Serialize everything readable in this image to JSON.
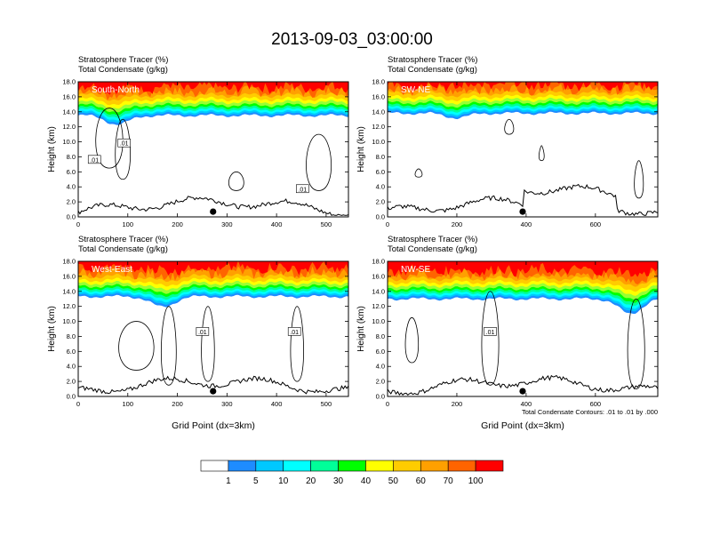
{
  "title": "2013-09-03_03:00:00",
  "chart_data": {
    "type": "heatmap",
    "variables": [
      "Stratosphere Tracer   (%)",
      "Total Condensate   (g/kg)"
    ],
    "ylabel": "Height (km)",
    "ylim": [
      0,
      18
    ],
    "yticks": [
      "0.0",
      "2.0",
      "4.0",
      "6.0",
      "8.0",
      "10.0",
      "12.0",
      "14.0",
      "16.0",
      "18.0"
    ],
    "xlabel": "Grid Point (dx=3km)",
    "contour_note": "Total Condensate Contours: .01 to .01 by .000",
    "contour_label": ".01",
    "colorbar": {
      "levels": [
        "1",
        "5",
        "10",
        "20",
        "30",
        "40",
        "50",
        "60",
        "70",
        "100"
      ],
      "colors": [
        "#ffffff",
        "#1e8cff",
        "#00c8ff",
        "#00ffff",
        "#00ff99",
        "#00ff00",
        "#99ff33",
        "#ffff00",
        "#ffcc00",
        "#ffa000",
        "#ff6400",
        "#ff0000"
      ]
    },
    "panels": [
      {
        "name": "South-North",
        "xlim": [
          0,
          545
        ],
        "xticks": [
          "0",
          "100",
          "200",
          "300",
          "400",
          "500"
        ],
        "marker_x": 272,
        "tropopause_km": 13.5,
        "dip_x": 80,
        "dip_depth": 1.2
      },
      {
        "name": "SW-NE",
        "xlim": [
          0,
          780
        ],
        "xticks": [
          "0",
          "200",
          "400",
          "600"
        ],
        "marker_x": 390,
        "tropopause_km": 13.8,
        "dip_x": 200,
        "dip_depth": 0.6
      },
      {
        "name": "West-East",
        "xlim": [
          0,
          545
        ],
        "xticks": [
          "0",
          "100",
          "200",
          "300",
          "400",
          "500"
        ],
        "marker_x": 272,
        "tropopause_km": 13.3,
        "dip_x": 170,
        "dip_depth": 1.4
      },
      {
        "name": "NW-SE",
        "xlim": [
          0,
          780
        ],
        "xticks": [
          "0",
          "200",
          "400",
          "600"
        ],
        "marker_x": 390,
        "tropopause_km": 13.0,
        "dip_x": 700,
        "dip_depth": 2.0
      }
    ]
  }
}
